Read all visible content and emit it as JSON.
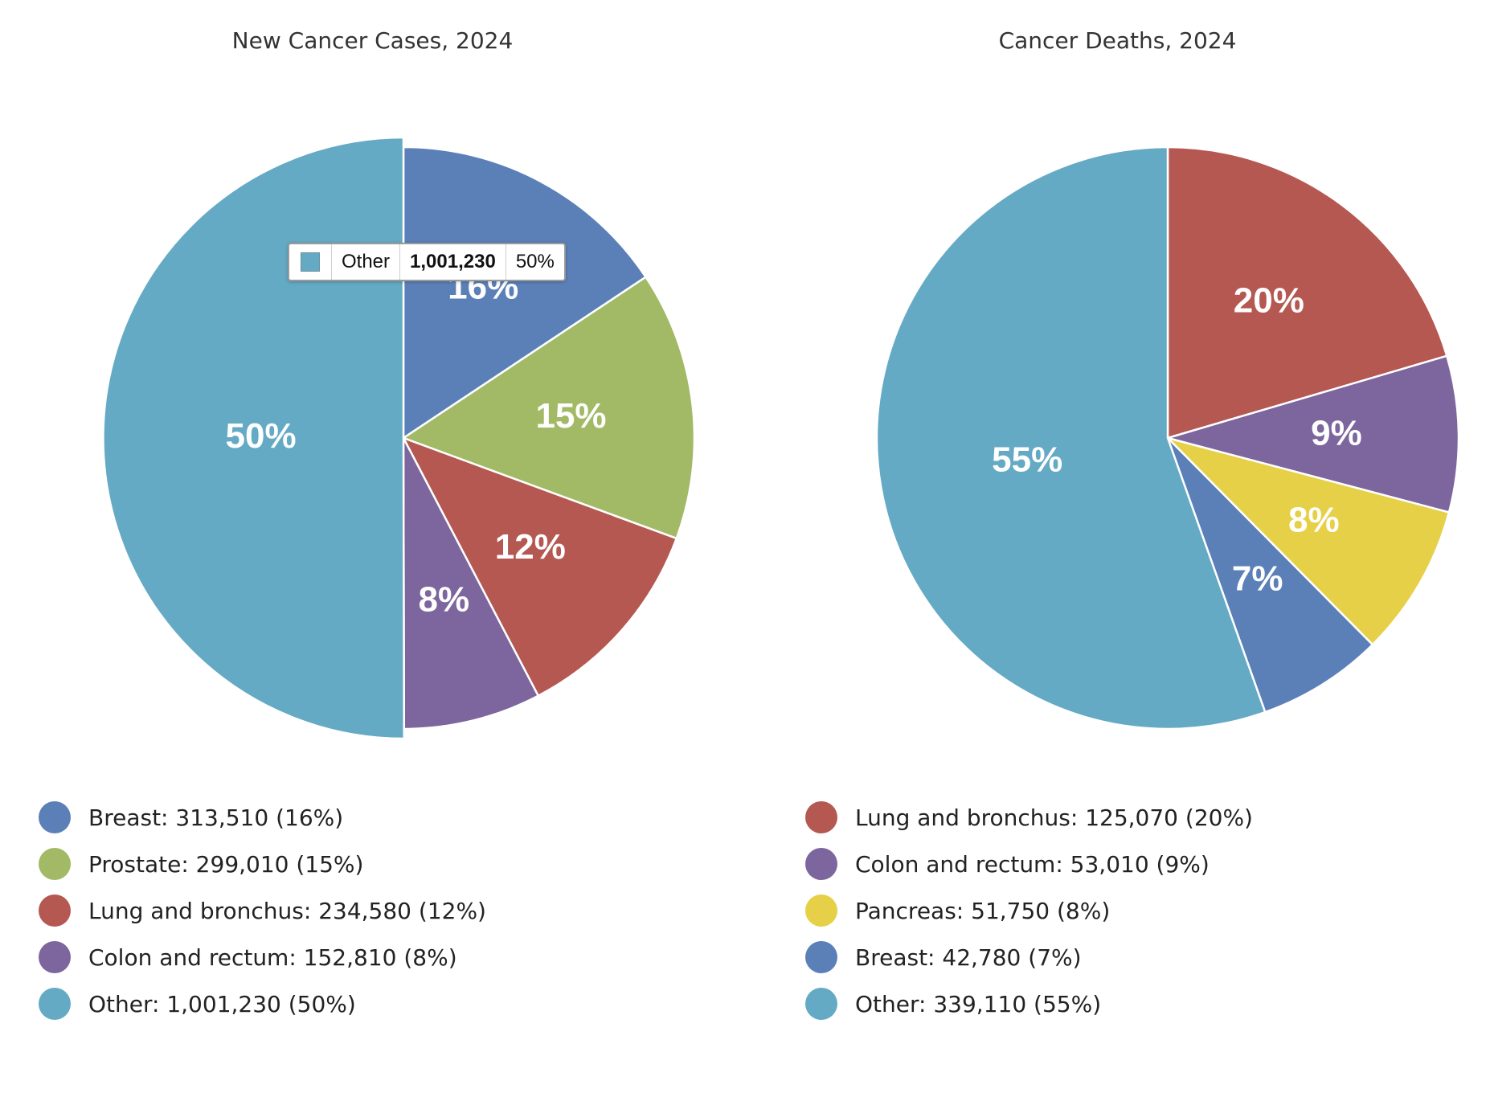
{
  "chart_data": [
    {
      "type": "pie",
      "title": "New Cancer Cases, 2024",
      "slices": [
        {
          "label": "Breast",
          "value": 313510,
          "percent_label": "16%",
          "legend": "Breast: 313,510 (16%)",
          "color": "#5b80b8"
        },
        {
          "label": "Prostate",
          "value": 299010,
          "percent_label": "15%",
          "legend": "Prostate: 299,010 (15%)",
          "color": "#a2ba66"
        },
        {
          "label": "Lung and bronchus",
          "value": 234580,
          "percent_label": "12%",
          "legend": "Lung and bronchus: 234,580 (12%)",
          "color": "#b55852"
        },
        {
          "label": "Colon and rectum",
          "value": 152810,
          "percent_label": "8%",
          "legend": "Colon and rectum: 152,810 (8%)",
          "color": "#7d659e"
        },
        {
          "label": "Other",
          "value": 1001230,
          "percent_label": "50%",
          "legend": "Other: 1,001,230 (50%)",
          "color": "#65aac4"
        }
      ],
      "tooltip": {
        "label": "Other",
        "value": "1,001,230",
        "percent": "50%",
        "color": "#65aac4"
      }
    },
    {
      "type": "pie",
      "title": "Cancer Deaths, 2024",
      "slices": [
        {
          "label": "Lung and bronchus",
          "value": 125070,
          "percent_label": "20%",
          "legend": "Lung and bronchus: 125,070 (20%)",
          "color": "#b55852"
        },
        {
          "label": "Colon and rectum",
          "value": 53010,
          "percent_label": "9%",
          "legend": "Colon and rectum: 53,010 (9%)",
          "color": "#7d659e"
        },
        {
          "label": "Pancreas",
          "value": 51750,
          "percent_label": "8%",
          "legend": "Pancreas: 51,750 (8%)",
          "color": "#e6d048"
        },
        {
          "label": "Breast",
          "value": 42780,
          "percent_label": "7%",
          "legend": "Breast: 42,780 (7%)",
          "color": "#5b80b8"
        },
        {
          "label": "Other",
          "value": 339110,
          "percent_label": "55%",
          "legend": "Other: 339,110 (55%)",
          "color": "#65aac4"
        }
      ]
    }
  ]
}
